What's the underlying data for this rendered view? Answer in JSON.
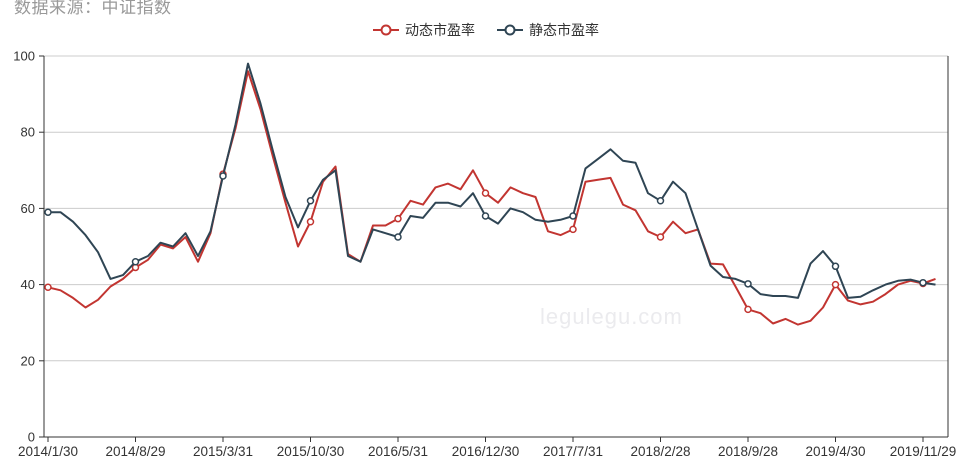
{
  "source_note": "数据来源：中证指数",
  "watermark": {
    "text": "legulegu.com",
    "color": "#ebebee"
  },
  "legend": [
    {
      "label": "动态市盈率",
      "color": "#c23531"
    },
    {
      "label": "静态市盈率",
      "color": "#2f4554"
    }
  ],
  "colors": {
    "background": "#ffffff",
    "axis": "#333333",
    "grid": "#cccccc",
    "tick_text": "#333333",
    "source_text": "#999999",
    "series_dynamic": "#c23531",
    "series_static": "#2f4554"
  },
  "chart_data": {
    "type": "line",
    "title": "",
    "xlabel": "",
    "ylabel": "",
    "ylim": [
      0,
      100
    ],
    "y_ticks": [
      0,
      20,
      40,
      60,
      80,
      100
    ],
    "grid": true,
    "legend_position": "top-center",
    "x_tick_labels": [
      "2014/1/30",
      "2014/8/29",
      "2015/3/31",
      "2015/10/30",
      "2016/5/31",
      "2016/12/30",
      "2017/7/31",
      "2018/2/28",
      "2018/9/28",
      "2019/4/30",
      "2019/11/29"
    ],
    "x_tick_positions": [
      0,
      7,
      14,
      21,
      28,
      35,
      42,
      49,
      56,
      63,
      70
    ],
    "marker_every": 7,
    "series": [
      {
        "name": "动态市盈率",
        "color": "#c23531",
        "values": [
          39.3,
          38.5,
          36.5,
          34,
          36,
          39.5,
          41.5,
          44.5,
          46.5,
          50.5,
          49.5,
          52.5,
          46,
          53.5,
          69,
          81,
          96,
          86,
          73.5,
          61.5,
          50,
          56.5,
          67,
          71,
          48,
          46,
          55.5,
          55.5,
          57.3,
          62,
          61,
          65.5,
          66.5,
          65,
          70,
          64,
          61.5,
          65.5,
          64,
          63,
          54,
          53,
          54.5,
          67,
          67.5,
          68,
          61,
          59.5,
          54,
          52.5,
          56.5,
          53.5,
          54.5,
          45.5,
          45.3,
          39.5,
          33.5,
          32.5,
          29.8,
          31,
          29.5,
          30.5,
          34,
          40,
          35.8,
          34.8,
          35.5,
          37.5,
          40,
          41,
          40.3,
          41.5
        ]
      },
      {
        "name": "静态市盈率",
        "color": "#2f4554",
        "values": [
          59,
          59,
          56.5,
          53,
          48.5,
          41.5,
          42.5,
          46,
          47.5,
          51,
          50,
          53.5,
          47.5,
          54,
          68.5,
          82,
          98,
          87.5,
          75,
          63,
          55,
          62,
          67.5,
          70,
          47.5,
          46,
          54.5,
          53.5,
          52.5,
          58,
          57.5,
          61.5,
          61.5,
          60.5,
          64,
          58,
          56,
          60,
          59,
          57,
          56.5,
          57,
          58,
          70.5,
          73,
          75.5,
          72.5,
          72,
          64,
          62,
          67,
          64,
          54.5,
          45,
          42,
          41.5,
          40.2,
          37.5,
          37,
          37,
          36.5,
          45.5,
          48.8,
          44.8,
          36.5,
          36.8,
          38.5,
          40,
          41,
          41.3,
          40.5,
          40
        ]
      }
    ]
  }
}
